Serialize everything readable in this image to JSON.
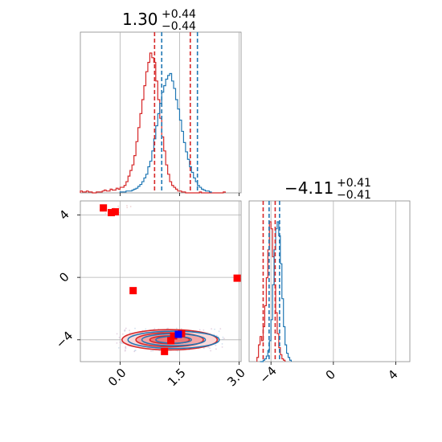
{
  "chart_data": {
    "type": "corner",
    "colors": {
      "blue": "#1f77b4",
      "red": "#d62728",
      "red_fill": "#f4a6a6",
      "marker_red": "#ff0000",
      "marker_blue": "#0000ff",
      "grid": "#b0b0b0"
    },
    "parameters": [
      {
        "title_value": "1.30",
        "title_plus": "+0.44",
        "title_minus": "−0.44",
        "range": [
          -1.0,
          3.05
        ],
        "ticks": [
          {
            "value": 0.0,
            "label": "0.0"
          },
          {
            "value": 1.5,
            "label": "1.5"
          },
          {
            "value": 3.0,
            "label": "3.0"
          }
        ],
        "quantiles_blue": [
          1.05,
          1.95
        ],
        "quantiles_red": [
          0.87,
          1.77
        ],
        "hist_blue": {
          "bin_start": 0.0,
          "bin_width": 0.05,
          "values": [
            1,
            1,
            1,
            2,
            2,
            2,
            3,
            4,
            5,
            7,
            9,
            12,
            16,
            20,
            28,
            34,
            45,
            58,
            72,
            85,
            96,
            108,
            115,
            122,
            126,
            128,
            120,
            112,
            100,
            90,
            78,
            66,
            54,
            44,
            36,
            28,
            22,
            16,
            12,
            8,
            6,
            4,
            3,
            2,
            2,
            1
          ]
        },
        "hist_red": {
          "bin_start": -1.0,
          "bin_width": 0.05,
          "values": [
            2,
            1,
            1,
            2,
            1,
            1,
            0,
            0,
            1,
            1,
            1,
            2,
            3,
            2,
            2,
            4,
            3,
            3,
            5,
            4,
            6,
            6,
            8,
            12,
            18,
            24,
            30,
            40,
            55,
            70,
            85,
            100,
            115,
            130,
            140,
            150,
            145,
            140,
            120,
            100,
            80,
            60,
            45,
            30,
            20,
            12,
            8,
            6,
            4,
            2,
            2,
            1,
            1,
            0,
            0,
            0,
            0,
            0,
            0,
            0,
            1,
            0,
            0,
            0,
            0,
            0,
            0,
            0,
            0,
            0,
            0,
            0,
            1
          ]
        }
      },
      {
        "title_value": "−4.11",
        "title_plus": "+0.41",
        "title_minus": "−0.41",
        "range": [
          -5.4,
          4.9
        ],
        "ticks": [
          {
            "value": -4,
            "label": "−4"
          },
          {
            "value": 0,
            "label": "0"
          },
          {
            "value": 4,
            "label": "4"
          }
        ],
        "quantiles_blue": [
          -4.12,
          -3.45
        ],
        "quantiles_red": [
          -4.5,
          -3.73
        ],
        "hist_blue": {
          "bin_start": -4.7,
          "bin_width": 0.1,
          "values": [
            0,
            0,
            1,
            2,
            4,
            8,
            15,
            30,
            55,
            80,
            95,
            100,
            90,
            70,
            45,
            25,
            12,
            6,
            3,
            1
          ]
        },
        "hist_red": {
          "bin_start": -4.9,
          "bin_width": 0.1,
          "values": [
            3,
            12,
            18,
            15,
            25,
            40,
            60,
            80,
            100,
            95,
            75,
            55,
            35,
            20,
            10,
            5,
            2,
            1
          ]
        }
      }
    ],
    "scatter_2d": {
      "red_markers": [
        {
          "x": -0.42,
          "y": 4.45
        },
        {
          "x": -0.22,
          "y": 4.15
        },
        {
          "x": -0.12,
          "y": 4.2
        },
        {
          "x": 0.33,
          "y": -0.85
        },
        {
          "x": 2.95,
          "y": -0.05
        },
        {
          "x": 1.28,
          "y": -4.05
        },
        {
          "x": 1.12,
          "y": -4.75
        },
        {
          "x": 1.55,
          "y": -3.6
        },
        {
          "x": 1.35,
          "y": -3.75
        }
      ],
      "blue_markers": [
        {
          "x": 1.47,
          "y": -3.65
        }
      ],
      "contours_red": [
        {
          "cx": 1.25,
          "cy": -4.0,
          "rx": 1.2,
          "ry": 0.65
        },
        {
          "cx": 1.25,
          "cy": -4.0,
          "rx": 0.85,
          "ry": 0.45
        },
        {
          "cx": 1.25,
          "cy": -4.0,
          "rx": 0.5,
          "ry": 0.25
        }
      ],
      "contours_blue": [
        {
          "cx": 1.35,
          "cy": -4.0,
          "rx": 1.15,
          "ry": 0.55
        },
        {
          "cx": 1.35,
          "cy": -4.0,
          "rx": 0.8,
          "ry": 0.38
        },
        {
          "cx": 1.35,
          "cy": -4.0,
          "rx": 0.45,
          "ry": 0.22
        }
      ]
    },
    "grid": true
  }
}
